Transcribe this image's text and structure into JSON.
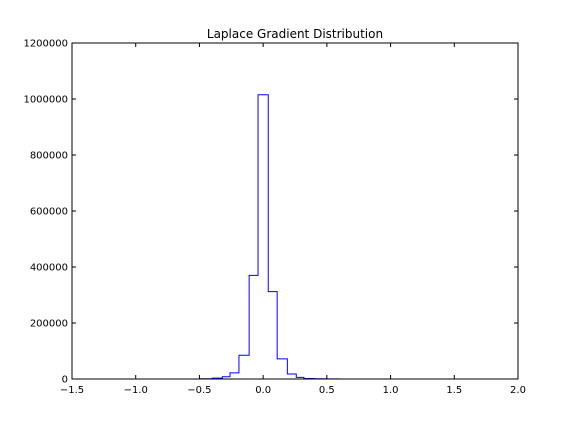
{
  "chart_data": {
    "type": "bar",
    "title": "Laplace Gradient Distribution",
    "xlabel": "",
    "ylabel": "",
    "xlim": [
      -1.5,
      2.0
    ],
    "ylim": [
      0,
      1200000
    ],
    "grid": false,
    "x_ticks": [
      -1.5,
      -1.0,
      -0.5,
      0.0,
      0.5,
      1.0,
      1.5,
      2.0
    ],
    "x_tick_labels": [
      "−1.5",
      "−1.0",
      "−0.5",
      "0.0",
      "0.5",
      "1.0",
      "1.5",
      "2.0"
    ],
    "y_ticks": [
      0,
      200000,
      400000,
      600000,
      800000,
      1000000,
      1200000
    ],
    "y_tick_labels": [
      "0",
      "200000",
      "400000",
      "600000",
      "800000",
      "1000000",
      "1200000"
    ],
    "histtype": "step",
    "bin_edges": [
      -1.285,
      -1.2,
      -1.1,
      -1.0,
      -0.9,
      -0.8,
      -0.7,
      -0.6,
      -0.5,
      -0.4,
      -0.32,
      -0.26,
      -0.19,
      -0.11,
      -0.04,
      0.04,
      0.11,
      0.19,
      0.26,
      0.32,
      0.4,
      0.5,
      0.6,
      0.7,
      0.8,
      0.9,
      1.0,
      1.1,
      1.2,
      1.3,
      1.4,
      1.5,
      1.665
    ],
    "counts": [
      0,
      0,
      0,
      0,
      0,
      0,
      0,
      0,
      1000,
      3000,
      8000,
      22000,
      85000,
      370000,
      1015000,
      312000,
      72000,
      18000,
      6000,
      2000,
      800,
      300,
      100,
      50,
      20,
      10,
      5,
      2,
      1,
      1,
      1,
      0
    ],
    "line_color": "#0000ff"
  }
}
